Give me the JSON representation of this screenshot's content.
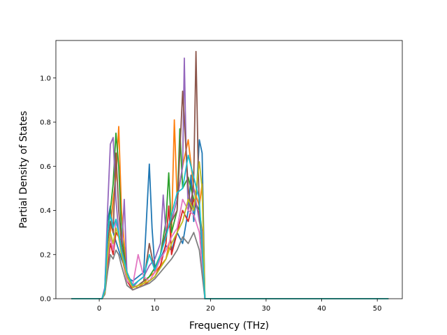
{
  "chart_data": {
    "type": "line",
    "xlabel": "Frequency (THz)",
    "ylabel": "Partial Density of States",
    "xlim": [
      -7.8,
      54.5
    ],
    "ylim": [
      0,
      1.17
    ],
    "xticks": [
      0,
      10,
      20,
      30,
      40,
      50
    ],
    "xtick_labels": [
      "0",
      "10",
      "20",
      "30",
      "40",
      "50"
    ],
    "yticks": [
      0,
      0.2,
      0.4,
      0.6,
      0.8,
      1.0
    ],
    "ytick_labels": [
      "0.0",
      "0.2",
      "0.4",
      "0.6",
      "0.8",
      "1.0"
    ],
    "grid": false,
    "legend": "none",
    "colors": [
      "#1f77b4",
      "#ff7f0e",
      "#2ca02c",
      "#d62728",
      "#9467bd",
      "#8c564b",
      "#e377c2",
      "#7f7f7f",
      "#bcbd22",
      "#17becf"
    ],
    "series": [
      {
        "x": [
          -5,
          0.5,
          1,
          1.5,
          2,
          2.5,
          3,
          3.5,
          4,
          4.5,
          5,
          6,
          7,
          8,
          9,
          9.5,
          10,
          11,
          12,
          13,
          14,
          15,
          16,
          16.5,
          17,
          17.5,
          18,
          18.5,
          19,
          20,
          52
        ],
        "y": [
          0,
          0,
          0.05,
          0.35,
          0.42,
          0.3,
          0.26,
          0.22,
          0.18,
          0.15,
          0.1,
          0.08,
          0.1,
          0.12,
          0.61,
          0.32,
          0.14,
          0.18,
          0.24,
          0.22,
          0.3,
          0.25,
          0.4,
          0.56,
          0.35,
          0.48,
          0.72,
          0.66,
          0,
          0,
          0
        ]
      },
      {
        "x": [
          -5,
          0.5,
          1,
          1.5,
          2,
          2.5,
          3,
          3.5,
          4,
          4.5,
          5,
          6,
          7,
          8,
          9,
          10,
          11,
          12,
          13,
          13.5,
          14,
          15,
          16,
          17,
          18,
          18.5,
          19,
          20,
          52
        ],
        "y": [
          0,
          0,
          0.03,
          0.2,
          0.3,
          0.45,
          0.55,
          0.78,
          0.4,
          0.25,
          0.12,
          0.06,
          0.05,
          0.07,
          0.1,
          0.12,
          0.15,
          0.18,
          0.3,
          0.81,
          0.45,
          0.6,
          0.72,
          0.5,
          0.42,
          0.52,
          0,
          0,
          0
        ]
      },
      {
        "x": [
          -5,
          0.5,
          1,
          1.5,
          2,
          2.5,
          3,
          3.5,
          4,
          4.5,
          5,
          6,
          7,
          8,
          9,
          10,
          11,
          12,
          12.5,
          13,
          14,
          14.5,
          15,
          16,
          17,
          18,
          18.5,
          19,
          20,
          52
        ],
        "y": [
          0,
          0,
          0.04,
          0.3,
          0.4,
          0.52,
          0.75,
          0.6,
          0.3,
          0.2,
          0.1,
          0.05,
          0.06,
          0.08,
          0.1,
          0.14,
          0.2,
          0.35,
          0.57,
          0.3,
          0.4,
          0.77,
          0.5,
          0.55,
          0.45,
          0.4,
          0.3,
          0,
          0,
          0
        ]
      },
      {
        "x": [
          -5,
          0.5,
          1,
          1.5,
          2,
          2.5,
          3,
          3.5,
          4,
          5,
          6,
          7,
          8,
          9,
          10,
          11,
          12,
          12.5,
          13,
          14,
          15,
          16,
          17,
          18,
          18.5,
          19,
          20,
          52
        ],
        "y": [
          0,
          0,
          0.02,
          0.15,
          0.25,
          0.2,
          0.3,
          0.28,
          0.2,
          0.08,
          0.04,
          0.05,
          0.06,
          0.08,
          0.1,
          0.15,
          0.25,
          0.42,
          0.2,
          0.3,
          0.4,
          0.35,
          0.45,
          0.38,
          0.3,
          0,
          0,
          0
        ]
      },
      {
        "x": [
          -5,
          0.5,
          1,
          1.5,
          2,
          2.5,
          3,
          3.5,
          4,
          4.5,
          5,
          6,
          7,
          8,
          9,
          10,
          11,
          11.5,
          12,
          13,
          14,
          15,
          15.3,
          15.6,
          16,
          17,
          18,
          18.5,
          19,
          20,
          52
        ],
        "y": [
          0,
          0,
          0.05,
          0.4,
          0.7,
          0.73,
          0.45,
          0.3,
          0.2,
          0.45,
          0.1,
          0.05,
          0.08,
          0.1,
          0.15,
          0.18,
          0.25,
          0.47,
          0.3,
          0.35,
          0.45,
          0.6,
          1.09,
          0.7,
          0.4,
          0.5,
          0.35,
          0.3,
          0,
          0,
          0
        ]
      },
      {
        "x": [
          -5,
          0.5,
          1,
          1.5,
          2,
          2.5,
          3,
          3.5,
          4,
          5,
          6,
          7,
          8,
          9,
          10,
          11,
          12,
          13,
          14,
          15,
          16,
          16.5,
          17,
          17.4,
          17.8,
          18,
          19,
          20,
          52
        ],
        "y": [
          0,
          0,
          0.03,
          0.25,
          0.35,
          0.3,
          0.66,
          0.4,
          0.25,
          0.1,
          0.05,
          0.06,
          0.08,
          0.25,
          0.12,
          0.2,
          0.3,
          0.35,
          0.4,
          0.94,
          0.5,
          0.4,
          0.55,
          1.12,
          0.6,
          0.4,
          0,
          0,
          0
        ]
      },
      {
        "x": [
          -5,
          0.5,
          1,
          1.5,
          2,
          2.5,
          3,
          3.5,
          4,
          5,
          6,
          7,
          8,
          9,
          10,
          11,
          12,
          13,
          14,
          15,
          16,
          17,
          18,
          19,
          20,
          52
        ],
        "y": [
          0,
          0,
          0.02,
          0.18,
          0.28,
          0.22,
          0.35,
          0.3,
          0.22,
          0.08,
          0.06,
          0.2,
          0.1,
          0.08,
          0.12,
          0.18,
          0.22,
          0.28,
          0.32,
          0.45,
          0.4,
          0.38,
          0.3,
          0,
          0,
          0
        ]
      },
      {
        "x": [
          -5,
          0.5,
          1,
          1.5,
          2,
          2.5,
          3,
          3.5,
          4,
          5,
          6,
          7,
          8,
          9,
          10,
          11,
          12,
          13,
          14,
          15,
          16,
          17,
          18,
          19,
          20,
          52
        ],
        "y": [
          0,
          0,
          0.02,
          0.12,
          0.2,
          0.18,
          0.22,
          0.2,
          0.15,
          0.06,
          0.04,
          0.05,
          0.06,
          0.07,
          0.09,
          0.12,
          0.15,
          0.18,
          0.22,
          0.28,
          0.25,
          0.3,
          0.22,
          0,
          0,
          0
        ]
      },
      {
        "x": [
          -5,
          0.5,
          1,
          1.5,
          2,
          2.5,
          3,
          3.5,
          4,
          5,
          6,
          7,
          8,
          9,
          10,
          11,
          12,
          13,
          14,
          15,
          16,
          17,
          18,
          18.5,
          19,
          20,
          52
        ],
        "y": [
          0,
          0,
          0.03,
          0.2,
          0.3,
          0.25,
          0.32,
          0.28,
          0.2,
          0.1,
          0.05,
          0.06,
          0.07,
          0.08,
          0.1,
          0.14,
          0.18,
          0.25,
          0.3,
          0.35,
          0.45,
          0.4,
          0.62,
          0.5,
          0,
          0,
          0
        ]
      },
      {
        "x": [
          -5,
          0.5,
          1,
          1.5,
          2,
          2.5,
          3,
          3.5,
          4,
          5,
          6,
          7,
          8,
          9,
          10,
          11,
          12,
          13,
          14,
          15,
          16,
          17,
          18,
          19,
          20,
          52
        ],
        "y": [
          0,
          0,
          0.04,
          0.3,
          0.38,
          0.32,
          0.36,
          0.3,
          0.22,
          0.12,
          0.06,
          0.08,
          0.1,
          0.2,
          0.13,
          0.2,
          0.28,
          0.38,
          0.48,
          0.5,
          0.65,
          0.55,
          0.45,
          0,
          0,
          0
        ]
      }
    ]
  }
}
